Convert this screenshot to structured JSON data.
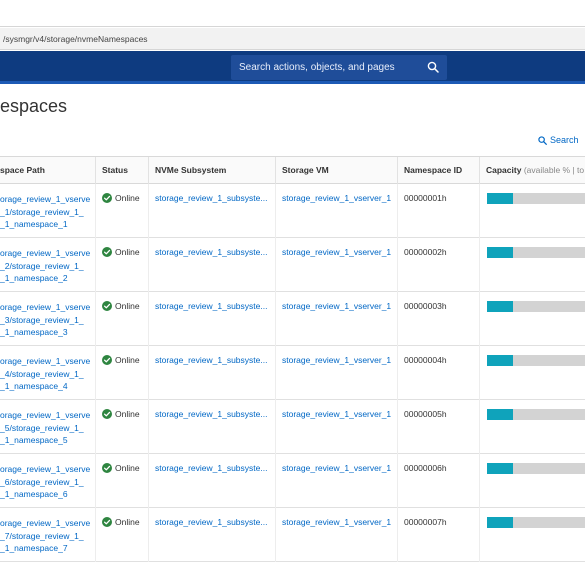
{
  "browser": {
    "url": "/sysmgr/v4/storage/nvmeNamespaces"
  },
  "header": {
    "search_placeholder": "Search actions, objects, and pages"
  },
  "page": {
    "title": "espaces",
    "search_label": "Search"
  },
  "table": {
    "columns": {
      "path": "space Path",
      "status": "Status",
      "subsystem": "NVMe Subsystem",
      "vm": "Storage VM",
      "id": "Namespace ID",
      "capacity": "Capacity",
      "capacity_extra": "(available % | to"
    },
    "rows": [
      {
        "path": [
          "orage_review_1_vserve",
          "_1/storage_review_1_",
          "_1_namespace_1"
        ],
        "status": "Online",
        "subsystem": "storage_review_1_subsyste...",
        "vm": "storage_review_1_vserver_1",
        "id": "00000001h",
        "used_fraction": 0.24
      },
      {
        "path": [
          "orage_review_1_vserve",
          "_2/storage_review_1_",
          "_1_namespace_2"
        ],
        "status": "Online",
        "subsystem": "storage_review_1_subsyste...",
        "vm": "storage_review_1_vserver_1",
        "id": "00000002h",
        "used_fraction": 0.24
      },
      {
        "path": [
          "orage_review_1_vserve",
          "_3/storage_review_1_",
          "_1_namespace_3"
        ],
        "status": "Online",
        "subsystem": "storage_review_1_subsyste...",
        "vm": "storage_review_1_vserver_1",
        "id": "00000003h",
        "used_fraction": 0.24
      },
      {
        "path": [
          "orage_review_1_vserve",
          "_4/storage_review_1_",
          "_1_namespace_4"
        ],
        "status": "Online",
        "subsystem": "storage_review_1_subsyste...",
        "vm": "storage_review_1_vserver_1",
        "id": "00000004h",
        "used_fraction": 0.24
      },
      {
        "path": [
          "orage_review_1_vserve",
          "_5/storage_review_1_",
          "_1_namespace_5"
        ],
        "status": "Online",
        "subsystem": "storage_review_1_subsyste...",
        "vm": "storage_review_1_vserver_1",
        "id": "00000005h",
        "used_fraction": 0.24
      },
      {
        "path": [
          "orage_review_1_vserve",
          "_6/storage_review_1_",
          "_1_namespace_6"
        ],
        "status": "Online",
        "subsystem": "storage_review_1_subsyste...",
        "vm": "storage_review_1_vserver_1",
        "id": "00000006h",
        "used_fraction": 0.24
      },
      {
        "path": [
          "orage_review_1_vserve",
          "_7/storage_review_1_",
          "_1_namespace_7"
        ],
        "status": "Online",
        "subsystem": "storage_review_1_subsyste...",
        "vm": "storage_review_1_vserver_1",
        "id": "00000007h",
        "used_fraction": 0.24
      }
    ]
  },
  "colors": {
    "header_bg": "#0e3b80",
    "link": "#0067c5",
    "online_green": "#2e8540",
    "capacity_fill": "#0fa3bb",
    "capacity_track": "#d3d3d3"
  },
  "icons": {
    "search": "search-icon",
    "status_ok": "check-circle-icon"
  }
}
